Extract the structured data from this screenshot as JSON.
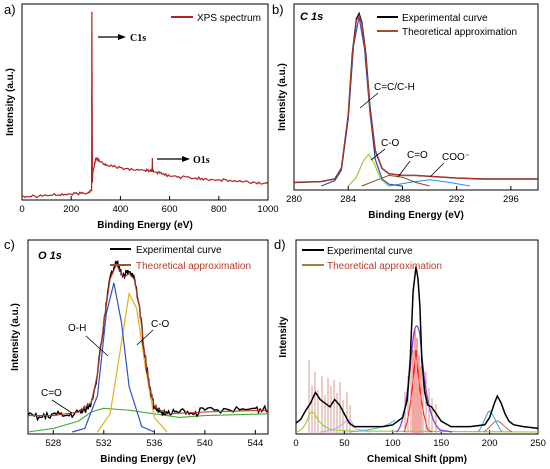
{
  "chart_data": [
    {
      "id": "a",
      "type": "line",
      "panel_label": "a)",
      "xlabel": "Binding Energy (eV)",
      "ylabel": "Intensity (a.u.)",
      "xlim": [
        0,
        1000
      ],
      "xticks": [
        0,
        200,
        400,
        600,
        800,
        1000
      ],
      "ylim": [
        0,
        100
      ],
      "legend_position": "top-right",
      "series": [
        {
          "name": "XPS spectrum",
          "color": "#b22222",
          "x": [
            0,
            50,
            100,
            150,
            200,
            240,
            270,
            283,
            284,
            285,
            286,
            288,
            300,
            320,
            350,
            400,
            450,
            500,
            520,
            529,
            530,
            531,
            535,
            560,
            600,
            650,
            700,
            750,
            800,
            850,
            900,
            950,
            1000
          ],
          "y": [
            1,
            1.2,
            1.4,
            1.7,
            2,
            2.4,
            3,
            4,
            98,
            60,
            8,
            13,
            21,
            19,
            17,
            16,
            15,
            14.5,
            14.5,
            14.5,
            21,
            14.5,
            14,
            13,
            11.5,
            11,
            10.5,
            10,
            9.5,
            9,
            8.5,
            8,
            7.5
          ]
        }
      ],
      "annotations": [
        {
          "text": "C1s",
          "x": 350,
          "y": 93
        },
        {
          "text": "O1s",
          "x": 705,
          "y": 19
        }
      ]
    },
    {
      "id": "b",
      "type": "line",
      "panel_label": "b)",
      "title": "C 1s",
      "xlabel": "Binding Energy (eV)",
      "ylabel": "Intensity (a.u.)",
      "xlim": [
        280,
        298
      ],
      "xticks": [
        280,
        284,
        288,
        292,
        296
      ],
      "ylim": [
        0,
        100
      ],
      "legend_position": "top-right",
      "series": [
        {
          "name": "Experimental curve",
          "color": "#000000",
          "x": [
            280,
            282,
            283,
            283.5,
            284,
            284.3,
            284.6,
            284.8,
            285.0,
            285.3,
            285.6,
            286,
            286.5,
            287,
            288,
            289,
            290,
            292,
            294,
            296,
            298
          ],
          "y": [
            2,
            2.5,
            4,
            10,
            40,
            75,
            95,
            98,
            93,
            75,
            45,
            20,
            10,
            7,
            6,
            6,
            5.5,
            4.5,
            4,
            4,
            4
          ]
        },
        {
          "name": "Theoretical approximation",
          "color": "#c0392b",
          "x": [
            280,
            282,
            283,
            283.5,
            284,
            284.3,
            284.6,
            284.8,
            285.0,
            285.3,
            285.6,
            286,
            286.5,
            287,
            288,
            289,
            290,
            292,
            294,
            296,
            298
          ],
          "y": [
            2,
            2.5,
            4,
            10,
            40,
            74,
            94,
            97,
            92,
            74,
            44,
            20,
            10,
            7,
            6,
            6,
            5.5,
            4.5,
            4,
            4,
            4
          ]
        },
        {
          "name": "C=C/C-H",
          "color": "#3050c8",
          "x": [
            282,
            283,
            283.5,
            284,
            284.4,
            284.8,
            285.2,
            285.6,
            286,
            286.5,
            287,
            288
          ],
          "y": [
            0,
            3,
            9,
            38,
            80,
            96,
            78,
            42,
            15,
            4,
            1,
            0
          ]
        },
        {
          "name": "C-O",
          "color": "#9acd32",
          "x": [
            284,
            284.6,
            285.1,
            285.5,
            285.9,
            286.4,
            287
          ],
          "y": [
            0,
            5,
            14,
            18,
            13,
            4,
            0
          ]
        },
        {
          "name": "C=O",
          "color": "#8b4513",
          "x": [
            285,
            286,
            287,
            288,
            289,
            290
          ],
          "y": [
            0,
            3,
            6,
            5,
            2,
            0
          ]
        },
        {
          "name": "COO⁻",
          "color": "#1e90ff",
          "x": [
            287,
            288.5,
            290,
            291.5,
            293
          ],
          "y": [
            0,
            2,
            3.5,
            2,
            0
          ]
        }
      ],
      "annotations": [
        {
          "text": "C=C/C-H",
          "x": 287.1,
          "y": 58
        },
        {
          "text": "C-O",
          "x": 286.2,
          "y": 30
        },
        {
          "text": "C=O",
          "x": 288.2,
          "y": 19
        },
        {
          "text": "COO⁻",
          "x": 292.4,
          "y": 17
        }
      ]
    },
    {
      "id": "c",
      "type": "line",
      "panel_label": "c)",
      "title": "O 1s",
      "xlabel": "Binding Energy (eV)",
      "ylabel": "Intensity (a.u.)",
      "xlim": [
        526,
        545
      ],
      "xticks": [
        528,
        532,
        536,
        540,
        544
      ],
      "ylim": [
        0,
        100
      ],
      "legend_position": "top-right",
      "series": [
        {
          "name": "Experimental curve",
          "color": "#000000",
          "x": [
            526,
            527,
            528,
            529,
            530,
            530.5,
            531,
            531.5,
            532,
            532.5,
            533,
            533.3,
            533.6,
            534,
            534.4,
            534.8,
            535.2,
            535.6,
            536,
            536.5,
            537,
            538,
            539,
            540,
            542,
            544,
            545
          ],
          "y": [
            9,
            8,
            10,
            9,
            11,
            12,
            16,
            32,
            60,
            85,
            93,
            89,
            86,
            88,
            85,
            70,
            45,
            25,
            14,
            11,
            10,
            11,
            10,
            12,
            12,
            13,
            12
          ]
        },
        {
          "name": "Theoretical approximation",
          "color": "#c0392b",
          "x": [
            526,
            528,
            530,
            531,
            531.5,
            532,
            532.5,
            533,
            533.3,
            533.6,
            534,
            534.4,
            534.8,
            535.2,
            535.6,
            536,
            537,
            540,
            545
          ],
          "y": [
            9,
            9,
            11,
            16,
            32,
            60,
            84,
            92,
            88,
            85,
            87,
            84,
            70,
            45,
            25,
            14,
            10,
            11,
            12
          ]
        },
        {
          "name": "O-H",
          "color": "#3050c8",
          "x": [
            529.5,
            530.5,
            531.5,
            532.2,
            532.8,
            533.4,
            534,
            535,
            536
          ],
          "y": [
            0,
            2,
            20,
            65,
            82,
            60,
            25,
            3,
            0
          ]
        },
        {
          "name": "C-O",
          "color": "#e0b020",
          "x": [
            531.5,
            532.5,
            533.2,
            534,
            534.6,
            535.3,
            536,
            537
          ],
          "y": [
            0,
            10,
            40,
            76,
            68,
            35,
            8,
            0
          ]
        },
        {
          "name": "C=O",
          "color": "#44aa33",
          "x": [
            526,
            528,
            530,
            531,
            532,
            534,
            536,
            538,
            540,
            545
          ],
          "y": [
            0,
            2,
            6,
            11,
            13,
            12,
            10,
            8,
            9,
            10
          ]
        }
      ],
      "annotations": [
        {
          "text": "O-H",
          "x": 530.3,
          "y": 60
        },
        {
          "text": "C-O",
          "x": 536.3,
          "y": 58
        },
        {
          "text": "C=O",
          "x": 528.7,
          "y": 22
        }
      ]
    },
    {
      "id": "d",
      "type": "line",
      "panel_label": "d)",
      "xlabel": "Chemical Shift (ppm)",
      "ylabel": "Intensity",
      "xlim": [
        0,
        250
      ],
      "xticks": [
        0,
        50,
        100,
        150,
        200,
        250
      ],
      "ylim": [
        0,
        100
      ],
      "legend_position": "top-left",
      "series": [
        {
          "name": "Experimental curve",
          "color": "#000000",
          "x": [
            0,
            5,
            10,
            15,
            20,
            25,
            30,
            35,
            40,
            45,
            50,
            55,
            60,
            70,
            80,
            90,
            100,
            110,
            115,
            118,
            121,
            124,
            126,
            128,
            130,
            133,
            136,
            140,
            145,
            150,
            160,
            180,
            195,
            200,
            205,
            208,
            212,
            216,
            220,
            225,
            235,
            250
          ],
          "y": [
            5,
            7,
            12,
            16,
            22,
            18,
            16,
            14,
            18,
            15,
            10,
            5,
            3,
            3,
            3,
            3,
            4,
            8,
            18,
            40,
            78,
            92,
            85,
            70,
            40,
            22,
            15,
            14,
            10,
            6,
            3,
            3,
            4,
            8,
            16,
            20,
            16,
            10,
            6,
            4,
            3,
            2
          ]
        },
        {
          "name": "Theoretical approximation",
          "color": "#a08040",
          "x": [],
          "y": []
        }
      ]
    }
  ]
}
